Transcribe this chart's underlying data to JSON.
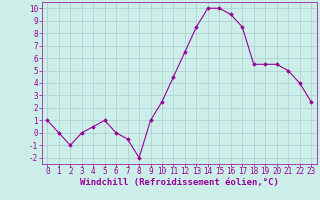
{
  "x": [
    0,
    1,
    2,
    3,
    4,
    5,
    6,
    7,
    8,
    9,
    10,
    11,
    12,
    13,
    14,
    15,
    16,
    17,
    18,
    19,
    20,
    21,
    22,
    23
  ],
  "y": [
    1,
    0,
    -1,
    0,
    0.5,
    1,
    0,
    -0.5,
    -2,
    1,
    2.5,
    4.5,
    6.5,
    8.5,
    10,
    10,
    9.5,
    8.5,
    5.5,
    5.5,
    5.5,
    5,
    4,
    2.5
  ],
  "line_color": "#990099",
  "marker": "D",
  "marker_size": 1.8,
  "linewidth": 0.8,
  "bg_color": "#cceee8",
  "grid_color": "#aacccc",
  "xlabel": "Windchill (Refroidissement éolien,°C)",
  "xlabel_fontsize": 6.5,
  "tick_fontsize": 5.5,
  "ylim": [
    -2.5,
    10.5
  ],
  "yticks": [
    -2,
    -1,
    0,
    1,
    2,
    3,
    4,
    5,
    6,
    7,
    8,
    9,
    10
  ],
  "xticks": [
    0,
    1,
    2,
    3,
    4,
    5,
    6,
    7,
    8,
    9,
    10,
    11,
    12,
    13,
    14,
    15,
    16,
    17,
    18,
    19,
    20,
    21,
    22,
    23
  ],
  "xlim": [
    -0.5,
    23.5
  ]
}
